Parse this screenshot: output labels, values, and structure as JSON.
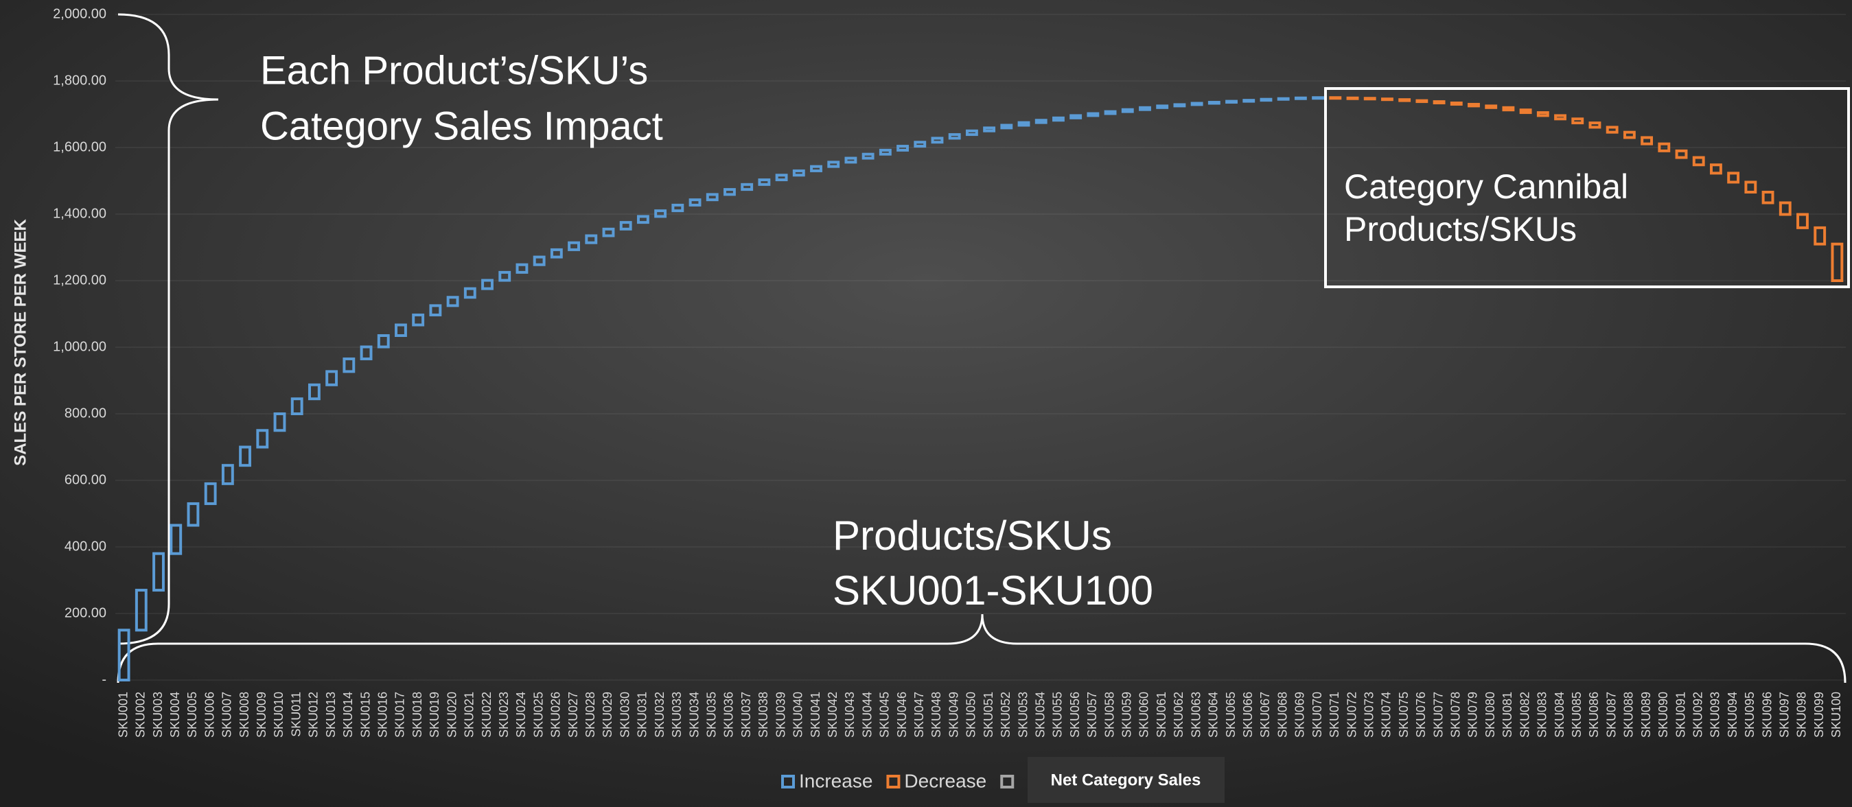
{
  "chart_data": {
    "type": "waterfall",
    "y_label": "SALES PER STORE PER  WEEK",
    "categories": [
      "SKU001",
      "SKU002",
      "SKU003",
      "SKU004",
      "SKU005",
      "SKU006",
      "SKU007",
      "SKU008",
      "SKU009",
      "SKU010",
      "SKU011",
      "SKU012",
      "SKU013",
      "SKU014",
      "SKU015",
      "SKU016",
      "SKU017",
      "SKU018",
      "SKU019",
      "SKU020",
      "SKU021",
      "SKU022",
      "SKU023",
      "SKU024",
      "SKU025",
      "SKU026",
      "SKU027",
      "SKU028",
      "SKU029",
      "SKU030",
      "SKU031",
      "SKU032",
      "SKU033",
      "SKU034",
      "SKU035",
      "SKU036",
      "SKU037",
      "SKU038",
      "SKU039",
      "SKU040",
      "SKU041",
      "SKU042",
      "SKU043",
      "SKU044",
      "SKU045",
      "SKU046",
      "SKU047",
      "SKU048",
      "SKU049",
      "SKU050",
      "SKU051",
      "SKU052",
      "SKU053",
      "SKU054",
      "SKU055",
      "SKU056",
      "SKU057",
      "SKU058",
      "SKU059",
      "SKU060",
      "SKU061",
      "SKU062",
      "SKU063",
      "SKU064",
      "SKU065",
      "SKU066",
      "SKU067",
      "SKU068",
      "SKU069",
      "SKU070",
      "SKU071",
      "SKU072",
      "SKU073",
      "SKU074",
      "SKU075",
      "SKU076",
      "SKU077",
      "SKU078",
      "SKU079",
      "SKU080",
      "SKU081",
      "SKU082",
      "SKU083",
      "SKU084",
      "SKU085",
      "SKU086",
      "SKU087",
      "SKU088",
      "SKU089",
      "SKU090",
      "SKU091",
      "SKU092",
      "SKU093",
      "SKU094",
      "SKU095",
      "SKU096",
      "SKU097",
      "SKU098",
      "SKU099",
      "SKU100"
    ],
    "values": [
      150,
      120,
      110,
      85,
      65,
      60,
      55,
      55,
      50,
      50,
      45,
      42,
      40,
      38,
      36,
      34,
      32,
      30,
      28,
      25,
      26,
      25,
      24,
      23,
      23,
      22,
      21,
      21,
      20,
      20,
      18,
      17,
      17,
      16,
      16,
      15,
      15,
      14,
      14,
      13,
      13,
      13,
      12,
      12,
      12,
      12,
      12,
      12,
      11,
      11,
      9,
      8,
      8,
      7,
      7,
      7,
      6,
      6,
      6,
      6,
      5,
      4,
      4,
      3,
      3,
      3,
      3,
      2,
      2,
      1,
      -1,
      -1,
      -2,
      -2,
      -3,
      -3,
      -4,
      -4,
      -5,
      -5,
      -7,
      -8,
      -9,
      -10,
      -12,
      -13,
      -15,
      -16,
      -19,
      -21,
      -20,
      -22,
      -25,
      -27,
      -30,
      -32,
      -35,
      -40,
      -49,
      -110
    ],
    "legend": [
      {
        "name": "Increase",
        "color": "#5b9bd5"
      },
      {
        "name": "Decrease",
        "color": "#ed7d31"
      }
    ],
    "tooltip": "Net Category Sales",
    "ylim": [
      0,
      2000
    ],
    "yticks": [
      {
        "value": 0,
        "label": "-"
      },
      {
        "value": 200,
        "label": "200.00"
      },
      {
        "value": 400,
        "label": "400.00"
      },
      {
        "value": 600,
        "label": "600.00"
      },
      {
        "value": 800,
        "label": "800.00"
      },
      {
        "value": 1000,
        "label": "1,000.00"
      },
      {
        "value": 1200,
        "label": "1,200.00"
      },
      {
        "value": 1400,
        "label": "1,400.00"
      },
      {
        "value": 1600,
        "label": "1,600.00"
      },
      {
        "value": 1800,
        "label": "1,800.00"
      },
      {
        "value": 2000,
        "label": "2,000.00"
      }
    ],
    "grid": true,
    "annotations": [
      {
        "lines": [
          "Each Product’s/SKU’s",
          "Category Sales Impact"
        ]
      },
      {
        "lines": [
          "Category Cannibal",
          "Products/SKUs"
        ]
      },
      {
        "lines": [
          "Products/SKUs",
          "SKU001-SKU100"
        ]
      }
    ]
  }
}
